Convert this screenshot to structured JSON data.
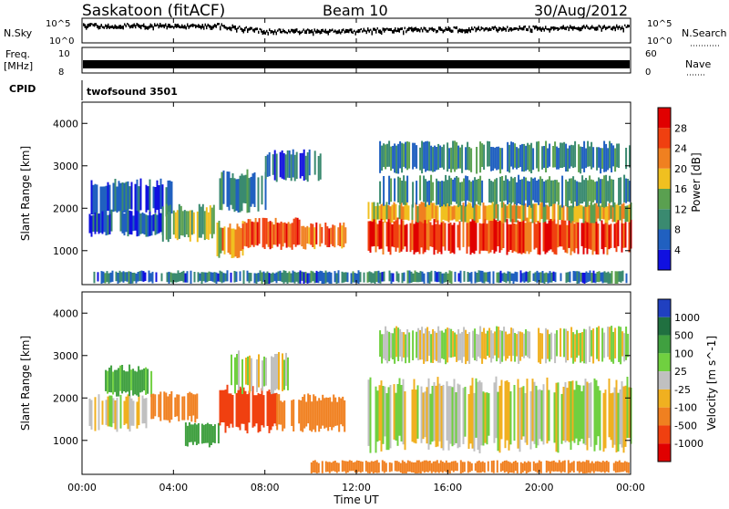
{
  "header": {
    "station": "Saskatoon (fitACF)",
    "beam": "Beam 10",
    "date": "30/Aug/2012"
  },
  "status_panels": {
    "nsky_label": "N.Sky",
    "nsky_ticks": [
      "10^5",
      "10^0"
    ],
    "nsearch_label": "N.Search",
    "nsearch_ticks": [
      "10^5",
      "10^0"
    ],
    "freq_label_line1": "Freq.",
    "freq_label_line2": "[MHz]",
    "freq_ticks": [
      "10",
      "8"
    ],
    "nave_label": "Nave",
    "nave_ticks": [
      "60",
      "0"
    ],
    "cpid_label": "CPID",
    "cpid_value": "twofsound 3501"
  },
  "x_axis": {
    "label": "Time UT",
    "ticks": [
      "00:00",
      "04:00",
      "08:00",
      "12:00",
      "16:00",
      "20:00",
      "00:00"
    ],
    "tick_hours": [
      0,
      4,
      8,
      12,
      16,
      20,
      24
    ]
  },
  "colors": {
    "power_scale": [
      "#1010e0",
      "#2060c0",
      "#3a8a70",
      "#5aa050",
      "#f0c020",
      "#f08020",
      "#f04010",
      "#e00000"
    ],
    "velocity_scale": [
      "#2040c0",
      "#207040",
      "#40a040",
      "#70d040",
      "#c0c0c0",
      "#f0b020",
      "#f08020",
      "#f04010",
      "#e00000"
    ],
    "velocity_ground": "#c0c0c0"
  },
  "chart_data": [
    {
      "type": "heatmap",
      "title": "Power",
      "ylabel": "Slant Range [km]",
      "xlabel": "",
      "xlim": [
        0,
        24
      ],
      "ylim": [
        200,
        4500
      ],
      "yticks": [
        "4000",
        "3000",
        "2000",
        "1000"
      ],
      "ytick_values": [
        4000,
        3000,
        2000,
        1000
      ],
      "colorbar": {
        "label": "Power [dB]",
        "ticks": [
          "28",
          "24",
          "20",
          "16",
          "12",
          "8",
          "4"
        ],
        "tick_values": [
          28,
          24,
          20,
          16,
          12,
          8,
          4
        ],
        "range": [
          0,
          32
        ]
      },
      "regions": [
        {
          "t": [
            0.3,
            3.9
          ],
          "r": [
            1900,
            2600
          ],
          "level": 6
        },
        {
          "t": [
            0.3,
            3.5
          ],
          "r": [
            1400,
            1900
          ],
          "level": 5
        },
        {
          "t": [
            3.5,
            5.8
          ],
          "r": [
            1300,
            2000
          ],
          "level": 14
        },
        {
          "t": [
            5.8,
            7.0
          ],
          "r": [
            900,
            1600
          ],
          "level": 20
        },
        {
          "t": [
            7.0,
            9.5
          ],
          "r": [
            1100,
            1700
          ],
          "level": 26
        },
        {
          "t": [
            9.5,
            11.5
          ],
          "r": [
            1100,
            1600
          ],
          "level": 24
        },
        {
          "t": [
            6.0,
            8.0
          ],
          "r": [
            2000,
            2800
          ],
          "level": 9
        },
        {
          "t": [
            8.0,
            10.5
          ],
          "r": [
            2700,
            3300
          ],
          "level": 7
        },
        {
          "t": [
            12.5,
            24.0
          ],
          "r": [
            1000,
            1700
          ],
          "level": 27
        },
        {
          "t": [
            12.5,
            24.0
          ],
          "r": [
            1700,
            2100
          ],
          "level": 18
        },
        {
          "t": [
            13.0,
            24.0
          ],
          "r": [
            2100,
            2700
          ],
          "level": 10
        },
        {
          "t": [
            13.0,
            24.0
          ],
          "r": [
            2900,
            3500
          ],
          "level": 9
        },
        {
          "t": [
            0.5,
            23.8
          ],
          "r": [
            250,
            500
          ],
          "level": 8
        }
      ]
    },
    {
      "type": "heatmap",
      "title": "Velocity",
      "ylabel": "Slant Range [km]",
      "xlabel": "Time UT",
      "xlim": [
        0,
        24
      ],
      "ylim": [
        200,
        4500
      ],
      "yticks": [
        "4000",
        "3000",
        "2000",
        "1000"
      ],
      "ytick_values": [
        4000,
        3000,
        2000,
        1000
      ],
      "colorbar": {
        "label": "Velocity [m s^-1]",
        "ticks": [
          "1000",
          "500",
          "100",
          "25",
          "-25",
          "-100",
          "-500",
          "-1000"
        ],
        "tick_values": [
          1000,
          500,
          100,
          25,
          -25,
          -100,
          -500,
          -1000
        ]
      },
      "regions": [
        {
          "t": [
            0.3,
            3.0
          ],
          "r": [
            1300,
            2000
          ],
          "level": 0
        },
        {
          "t": [
            1.0,
            3.0
          ],
          "r": [
            2100,
            2700
          ],
          "level": 150
        },
        {
          "t": [
            3.0,
            5.0
          ],
          "r": [
            1500,
            2100
          ],
          "level": -300
        },
        {
          "t": [
            4.5,
            6.0
          ],
          "r": [
            900,
            1400
          ],
          "level": 200
        },
        {
          "t": [
            6.0,
            8.5
          ],
          "r": [
            1300,
            2200
          ],
          "level": -700
        },
        {
          "t": [
            8.5,
            11.5
          ],
          "r": [
            1300,
            2000
          ],
          "level": -300
        },
        {
          "t": [
            6.5,
            9.0
          ],
          "r": [
            2200,
            3000
          ],
          "level": 0
        },
        {
          "t": [
            12.5,
            24.0
          ],
          "r": [
            900,
            2300
          ],
          "level": 0
        },
        {
          "t": [
            13.0,
            24.0
          ],
          "r": [
            2900,
            3600
          ],
          "level": 0
        },
        {
          "t": [
            10.0,
            24.0
          ],
          "r": [
            250,
            500
          ],
          "level": -200
        }
      ]
    }
  ]
}
